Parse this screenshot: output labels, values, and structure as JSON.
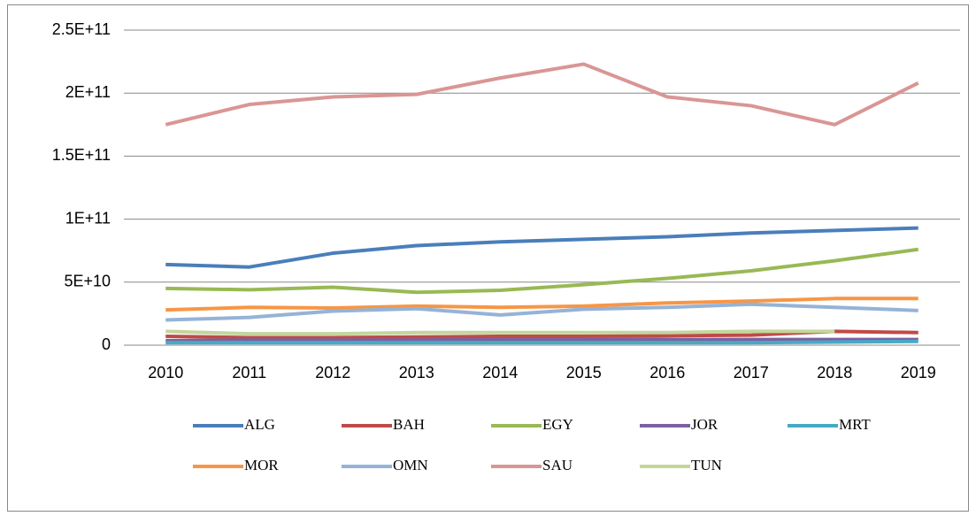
{
  "chart_data": {
    "type": "line",
    "categories": [
      "2010",
      "2011",
      "2012",
      "2013",
      "2014",
      "2015",
      "2016",
      "2017",
      "2018",
      "2019"
    ],
    "ylim": [
      0,
      250000000000
    ],
    "yticks": [
      0,
      {
        "value": 50000000000,
        "label": "5E+10"
      },
      {
        "value": 100000000000,
        "label": "1E+11"
      },
      {
        "value": 150000000000,
        "label": "1.5E+11"
      },
      {
        "value": 200000000000,
        "label": "2E+11"
      },
      {
        "value": 250000000000,
        "label": "2.5E+11"
      }
    ],
    "grid": true,
    "legend": "bottom",
    "series": [
      {
        "name": "ALG",
        "color": "#4a7ebb",
        "values": [
          64000000000.0,
          62000000000.0,
          73000000000.0,
          79000000000.0,
          82000000000.0,
          84000000000.0,
          86000000000.0,
          89000000000.0,
          91000000000.0,
          93000000000.0
        ]
      },
      {
        "name": "BAH",
        "color": "#be4b48",
        "values": [
          7000000000.0,
          6000000000.0,
          6000000000.0,
          6500000000.0,
          7000000000.0,
          7000000000.0,
          7500000000.0,
          8000000000.0,
          11000000000.0,
          10000000000.0
        ]
      },
      {
        "name": "EGY",
        "color": "#98b954",
        "values": [
          45000000000.0,
          44000000000.0,
          46000000000.0,
          42000000000.0,
          43500000000.0,
          48000000000.0,
          53000000000.0,
          59000000000.0,
          67000000000.0,
          76000000000.0
        ]
      },
      {
        "name": "JOR",
        "color": "#7d60a0",
        "values": [
          3500000000.0,
          4000000000.0,
          4000000000.0,
          4000000000.0,
          4500000000.0,
          4500000000.0,
          4500000000.0,
          4500000000.0,
          4500000000.0,
          4500000000.0
        ]
      },
      {
        "name": "MRT",
        "color": "#46aac5",
        "values": [
          2000000000.0,
          2000000000.0,
          2000000000.0,
          2000000000.0,
          2000000000.0,
          2000000000.0,
          2000000000.0,
          2000000000.0,
          2500000000.0,
          3000000000.0
        ]
      },
      {
        "name": "MOR",
        "color": "#f79646",
        "values": [
          28000000000.0,
          30000000000.0,
          29500000000.0,
          31000000000.0,
          30000000000.0,
          31000000000.0,
          33500000000.0,
          35000000000.0,
          37000000000.0,
          37000000000.0
        ]
      },
      {
        "name": "OMN",
        "color": "#95b3d7",
        "values": [
          20000000000.0,
          22000000000.0,
          27000000000.0,
          29000000000.0,
          24000000000.0,
          28500000000.0,
          30000000000.0,
          32500000000.0,
          30000000000.0,
          27500000000.0
        ]
      },
      {
        "name": "SAU",
        "color": "#d99694",
        "values": [
          175000000000.0,
          191000000000.0,
          197000000000.0,
          199000000000.0,
          212000000000.0,
          223000000000.0,
          197000000000.0,
          190000000000.0,
          175000000000.0,
          208000000000.0
        ]
      },
      {
        "name": "TUN",
        "color": "#c3d69b",
        "values": [
          11000000000.0,
          9000000000.0,
          9000000000.0,
          10000000000.0,
          10000000000.0,
          10000000000.0,
          10000000000.0,
          11000000000.0,
          11000000000.0,
          null
        ]
      }
    ]
  }
}
